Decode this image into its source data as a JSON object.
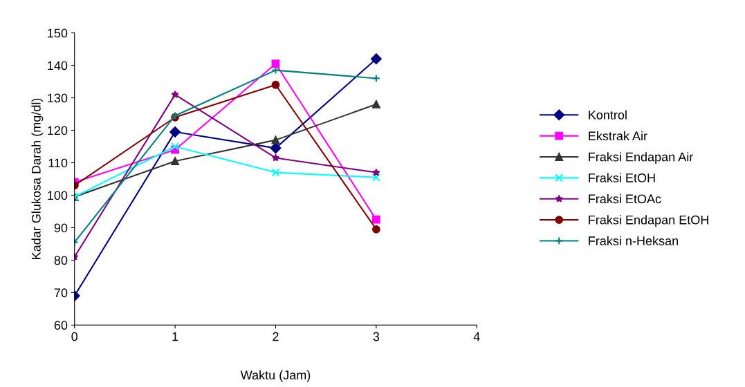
{
  "chart_data": {
    "type": "line",
    "xlabel": "Waktu (Jam)",
    "ylabel": "Kadar Glukosa Darah (mg/dl)",
    "x": [
      0,
      1,
      2,
      3
    ],
    "xlim": [
      0,
      4
    ],
    "xticks": [
      0,
      1,
      2,
      3,
      4
    ],
    "ylim": [
      60,
      150
    ],
    "yticks": [
      60,
      70,
      80,
      90,
      100,
      110,
      120,
      130,
      140,
      150
    ],
    "grid": false,
    "legend": "right",
    "line_style": "solid",
    "series": [
      {
        "name": "Kontrol",
        "color": "#000080",
        "marker": "diamond",
        "values": [
          69,
          119.5,
          114.5,
          142
        ]
      },
      {
        "name": "Ekstrak Air",
        "color": "#ff00ff",
        "marker": "square",
        "values": [
          104,
          114,
          140.5,
          92.5
        ]
      },
      {
        "name": "Fraksi Endapan Air",
        "color": "#333333",
        "marker": "triangle",
        "values": [
          99.5,
          110.5,
          117,
          128
        ]
      },
      {
        "name": "Fraksi EtOH",
        "color": "#00ffff",
        "marker": "cross",
        "values": [
          99.5,
          115,
          107,
          105.5
        ]
      },
      {
        "name": "Fraksi EtOAc",
        "color": "#800080",
        "marker": "star",
        "values": [
          81,
          131,
          111.5,
          107
        ]
      },
      {
        "name": "Fraksi Endapan EtOH",
        "color": "#800000",
        "marker": "circle",
        "values": [
          103,
          124,
          134,
          89.5
        ]
      },
      {
        "name": "Fraksi n-Heksan",
        "color": "#008080",
        "marker": "plus",
        "values": [
          85.5,
          124.5,
          138.5,
          136
        ]
      }
    ]
  }
}
